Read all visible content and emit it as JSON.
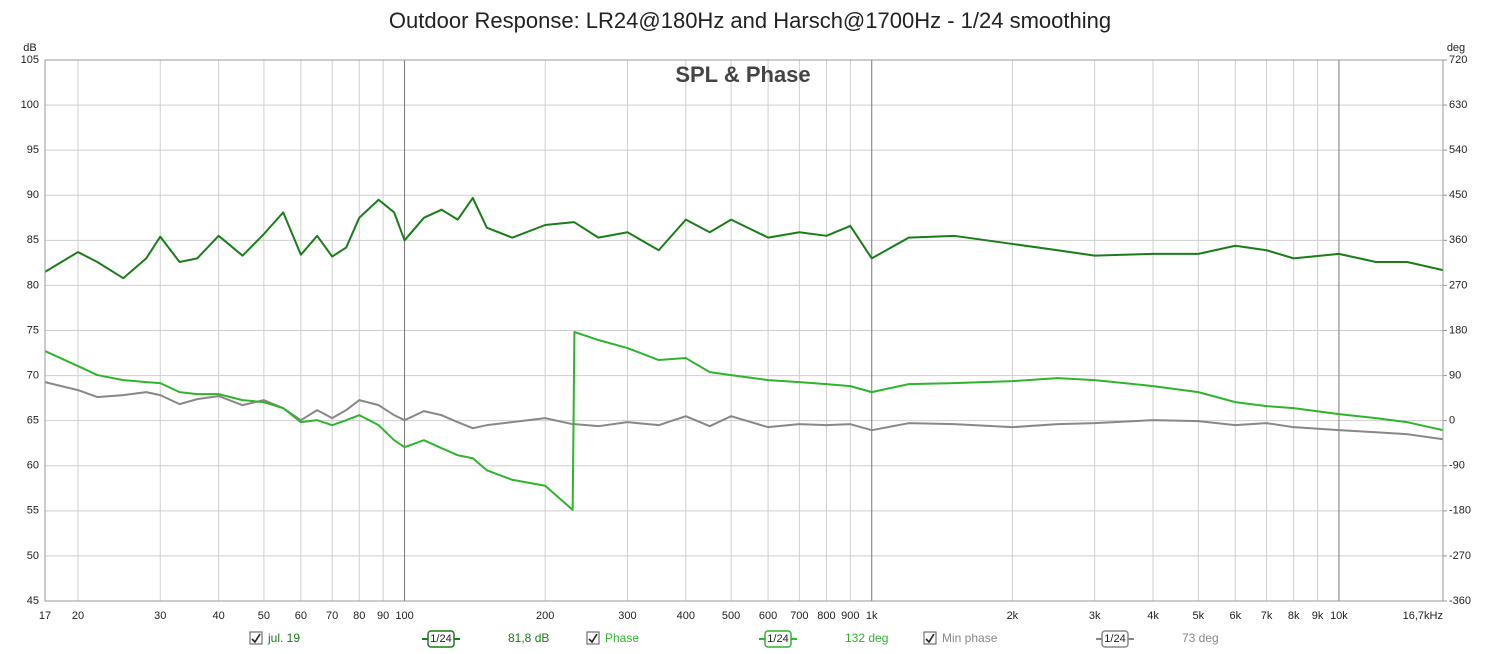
{
  "chart_data": {
    "type": "line",
    "title": "Outdoor Response: LR24@180Hz and Harsch@1700Hz - 1/24 smoothing",
    "subtitle": "SPL & Phase",
    "ylabel": "dB",
    "y2label": "deg",
    "log_x": true,
    "grid": true,
    "x": [
      17,
      20,
      22,
      25,
      28,
      30,
      33,
      36,
      40,
      45,
      50,
      55,
      60,
      65,
      70,
      75,
      80,
      88,
      95,
      100,
      110,
      120,
      130,
      140,
      150,
      170,
      200,
      229,
      231,
      260,
      300,
      350,
      400,
      450,
      500,
      600,
      700,
      800,
      900,
      1000,
      1200,
      1500,
      2000,
      2500,
      3000,
      4000,
      5000,
      6000,
      7000,
      8000,
      10000,
      12000,
      14000,
      16700
    ],
    "xlim": [
      17,
      16700
    ],
    "xticks": [
      17,
      20,
      30,
      40,
      50,
      60,
      70,
      80,
      90,
      100,
      200,
      300,
      400,
      500,
      600,
      700,
      800,
      900,
      {
        "value": 1000,
        "label": "1k"
      },
      {
        "value": 2000,
        "label": "2k"
      },
      {
        "value": 3000,
        "label": "3k"
      },
      {
        "value": 4000,
        "label": "4k"
      },
      {
        "value": 5000,
        "label": "5k"
      },
      {
        "value": 6000,
        "label": "6k"
      },
      {
        "value": 7000,
        "label": "7k"
      },
      {
        "value": 8000,
        "label": "8k"
      },
      {
        "value": 9000,
        "label": "9k"
      },
      {
        "value": 10000,
        "label": "10k"
      },
      {
        "value": 16700,
        "label": "16,7kHz"
      }
    ],
    "ylim": [
      45,
      105
    ],
    "yticks": [
      45,
      50,
      55,
      60,
      65,
      70,
      75,
      80,
      85,
      90,
      95,
      100,
      105
    ],
    "y2lim": [
      -360,
      720
    ],
    "y2ticks": [
      -360,
      -270,
      -180,
      -90,
      0,
      90,
      180,
      270,
      360,
      450,
      540,
      630,
      720
    ],
    "series": [
      {
        "name": "jul. 19",
        "color": "#1a7d1a",
        "smoothing": "1/24",
        "readout": "81,8 dB",
        "values": [
          81.5,
          83.7,
          82.6,
          80.8,
          83.0,
          85.4,
          82.6,
          83.0,
          85.5,
          83.3,
          85.7,
          88.1,
          83.4,
          85.5,
          83.2,
          84.2,
          87.5,
          89.5,
          88.1,
          85.0,
          87.5,
          88.4,
          87.3,
          89.7,
          86.4,
          85.3,
          86.7,
          87.0,
          87.0,
          85.3,
          85.9,
          83.9,
          87.3,
          85.9,
          87.3,
          85.3,
          85.9,
          85.5,
          86.6,
          83.0,
          85.3,
          85.5,
          84.6,
          83.9,
          83.3,
          83.5,
          83.5,
          84.4,
          83.9,
          83.0,
          83.5,
          82.6,
          82.6,
          81.7
        ]
      },
      {
        "name": "Phase",
        "color": "#2db52d",
        "axis": "y2",
        "smoothing": "1/24",
        "readout": "132 deg",
        "values": [
          139,
          109,
          91,
          81,
          77,
          75,
          57,
          53,
          53,
          41,
          37,
          25,
          -3,
          1,
          -9,
          1,
          11,
          -9,
          -39,
          -53,
          -39,
          -55,
          -69,
          -75,
          -99,
          -118,
          -130,
          -178,
          177,
          161,
          145,
          121,
          125,
          97,
          91,
          81,
          77,
          73,
          69,
          57,
          73,
          75,
          79,
          85,
          81,
          69,
          57,
          37,
          29,
          25,
          13,
          5,
          -3,
          -19
        ]
      },
      {
        "name": "Min phase",
        "color": "#888888",
        "axis": "y2",
        "smoothing": "1/24",
        "readout": "73 deg",
        "values": [
          77,
          61,
          47,
          51,
          57,
          51,
          33,
          43,
          49,
          31,
          41,
          25,
          1,
          21,
          5,
          21,
          41,
          31,
          11,
          1,
          19,
          11,
          -3,
          -15,
          -9,
          -3,
          5,
          -7,
          -7,
          -11,
          -3,
          -9,
          9,
          -11,
          9,
          -13,
          -7,
          -9,
          -7,
          -19,
          -5,
          -7,
          -13,
          -7,
          -5,
          1,
          -1,
          -9,
          -5,
          -13,
          -19,
          -23,
          -27,
          -37
        ]
      }
    ]
  }
}
